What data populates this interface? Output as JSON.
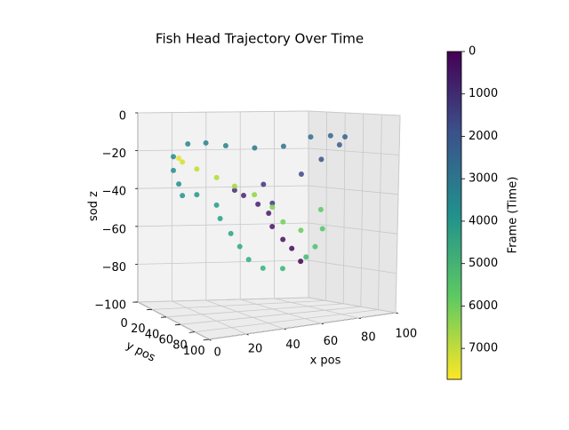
{
  "chart_data": {
    "type": "scatter3d",
    "title": "Fish Head Trajectory Over Time",
    "x_label": "x pos",
    "y_label": "y pos",
    "z_label": "z pos",
    "colorbar_label": "Frame (Time)",
    "colormap": "viridis",
    "xlim": [
      0,
      100
    ],
    "ylim": [
      0,
      100
    ],
    "zlim": [
      -100,
      0
    ],
    "xticks": [
      0,
      20,
      40,
      60,
      80,
      100
    ],
    "yticks": [
      0,
      20,
      40,
      60,
      80,
      100
    ],
    "zticks": [
      {
        "value": -100,
        "label": "−100"
      },
      {
        "value": -80,
        "label": "−80"
      },
      {
        "value": -60,
        "label": "−60"
      },
      {
        "value": -40,
        "label": "−40"
      },
      {
        "value": -20,
        "label": "−20"
      },
      0
    ],
    "clim": [
      0,
      7730
    ],
    "cticks": [
      0,
      1000,
      2000,
      3000,
      4000,
      5000,
      6000,
      7000
    ],
    "colorbar_inverted": true,
    "grid": true,
    "x": [
      71,
      66,
      61,
      55,
      53,
      47,
      39,
      34,
      50,
      55,
      71,
      82,
      92,
      95,
      87,
      76,
      61,
      45,
      29,
      18,
      8,
      0,
      0,
      3,
      5,
      13,
      24,
      26,
      32,
      37,
      42,
      50,
      61,
      74,
      79,
      83,
      82,
      71,
      61,
      55,
      45,
      34,
      24,
      13,
      5,
      3
    ],
    "y": [
      50,
      50,
      50,
      50,
      50,
      50,
      50,
      50,
      50,
      50,
      50,
      50,
      50,
      50,
      50,
      50,
      50,
      50,
      50,
      50,
      50,
      50,
      50,
      50,
      50,
      50,
      50,
      50,
      50,
      50,
      50,
      50,
      50,
      50,
      50,
      50,
      50,
      50,
      50,
      50,
      50,
      50,
      50,
      50,
      50,
      50
    ],
    "z": [
      -75,
      -68,
      -63,
      -56,
      -49,
      -44,
      -39,
      -36,
      -34,
      -44,
      -30,
      -23,
      -16,
      -12,
      -11,
      -11,
      -15,
      -15,
      -13,
      -11,
      -11,
      -17,
      -24,
      -31,
      -37,
      -37,
      -43,
      -50,
      -58,
      -65,
      -72,
      -77,
      -78,
      -73,
      -68,
      -59,
      -49,
      -59,
      -54,
      -46,
      -39,
      -34,
      -29,
      -24,
      -20,
      -18
    ],
    "frame": [
      0,
      150,
      300,
      450,
      550,
      650,
      750,
      850,
      1100,
      1250,
      1600,
      1900,
      2200,
      2350,
      2500,
      2700,
      2900,
      3100,
      3300,
      3450,
      3600,
      3700,
      3800,
      3900,
      4000,
      4100,
      4250,
      4400,
      4550,
      4700,
      4850,
      5000,
      5150,
      5300,
      5450,
      5600,
      5750,
      5900,
      6050,
      6200,
      6400,
      6600,
      6800,
      7000,
      7200,
      7400
    ]
  }
}
